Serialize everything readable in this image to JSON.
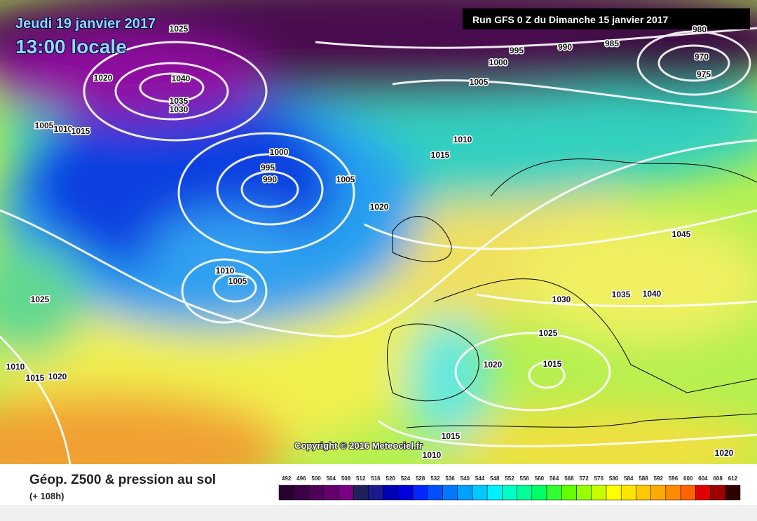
{
  "header": {
    "date": "Jeudi 19 janvier 2017",
    "time": "13:00 locale",
    "run": "Run GFS 0 Z du Dimanche 15 janvier 2017"
  },
  "copyright": "Copyright © 2016 Meteociel.fr",
  "isobar_labels": [
    1025,
    1040,
    1035,
    1030,
    1020,
    1005,
    1010,
    1015,
    1000,
    995,
    990,
    1005,
    1020,
    1010,
    1015,
    995,
    990,
    985,
    1000,
    1005,
    980,
    970,
    975,
    1045,
    1010,
    1005,
    1025,
    1030,
    1035,
    1040,
    1025,
    1020,
    1015,
    1010,
    1015,
    1020,
    1015,
    1010,
    1020
  ],
  "footer": {
    "title": "Géop. Z500 & pression au sol",
    "subtitle": "(+ 108h)"
  },
  "scale": {
    "labels": [
      492,
      496,
      500,
      504,
      508,
      512,
      516,
      520,
      524,
      528,
      532,
      536,
      540,
      544,
      548,
      552,
      556,
      560,
      564,
      568,
      572,
      576,
      580,
      584,
      588,
      592,
      596,
      600,
      604,
      608,
      612
    ],
    "colors": [
      "#280030",
      "#3c0046",
      "#50005a",
      "#64006e",
      "#780082",
      "#20205a",
      "#1a1a8c",
      "#0000b4",
      "#0000dc",
      "#0028ff",
      "#0050ff",
      "#0078ff",
      "#00a0ff",
      "#00c8ff",
      "#00f0ff",
      "#00ffc8",
      "#00ff96",
      "#00ff64",
      "#32ff32",
      "#64ff00",
      "#96ff00",
      "#c8ff00",
      "#ffff00",
      "#ffe600",
      "#ffc800",
      "#ffaa00",
      "#ff8c00",
      "#ff6400",
      "#e00000",
      "#a00000",
      "#300000"
    ]
  }
}
